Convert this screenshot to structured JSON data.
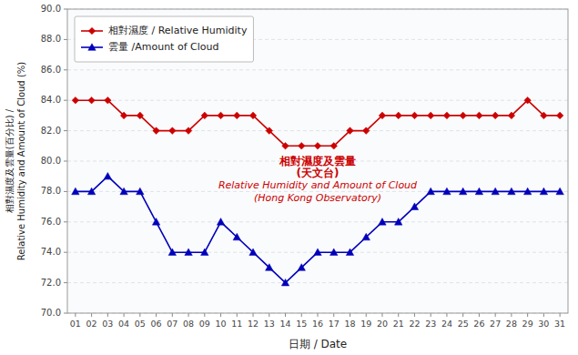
{
  "chart_data": {
    "type": "line",
    "xlabel": "日期 / Date",
    "ylabel": "相對濕度及雲量(百分比) /\nRelative Humidity and Amount of Cloud (%)",
    "x": [
      1,
      2,
      3,
      4,
      5,
      6,
      7,
      8,
      9,
      10,
      11,
      12,
      13,
      14,
      15,
      16,
      17,
      18,
      19,
      20,
      21,
      22,
      23,
      24,
      25,
      26,
      27,
      28,
      29,
      30,
      31
    ],
    "xlim": [
      0.5,
      31.5
    ],
    "xticks": [
      {
        "value": 1,
        "label": "01"
      },
      {
        "value": 2,
        "label": "02"
      },
      {
        "value": 3,
        "label": "03"
      },
      {
        "value": 4,
        "label": "04"
      },
      {
        "value": 5,
        "label": "05"
      },
      {
        "value": 6,
        "label": "06"
      },
      {
        "value": 7,
        "label": "07"
      },
      {
        "value": 8,
        "label": "08"
      },
      {
        "value": 9,
        "label": "09"
      },
      {
        "value": 10,
        "label": "10"
      },
      {
        "value": 11,
        "label": "11"
      },
      {
        "value": 12,
        "label": "12"
      },
      {
        "value": 13,
        "label": "13"
      },
      {
        "value": 14,
        "label": "14"
      },
      {
        "value": 15,
        "label": "15"
      },
      {
        "value": 16,
        "label": "16"
      },
      {
        "value": 17,
        "label": "17"
      },
      {
        "value": 18,
        "label": "18"
      },
      {
        "value": 19,
        "label": "19"
      },
      {
        "value": 20,
        "label": "20"
      },
      {
        "value": 21,
        "label": "21"
      },
      {
        "value": 22,
        "label": "22"
      },
      {
        "value": 23,
        "label": "23"
      },
      {
        "value": 24,
        "label": "24"
      },
      {
        "value": 25,
        "label": "25"
      },
      {
        "value": 26,
        "label": "26"
      },
      {
        "value": 27,
        "label": "27"
      },
      {
        "value": 28,
        "label": "28"
      },
      {
        "value": 29,
        "label": "29"
      },
      {
        "value": 30,
        "label": "30"
      },
      {
        "value": 31,
        "label": "31"
      }
    ],
    "ylim": [
      70.0,
      90.0
    ],
    "yticks": [
      {
        "value": 70.0,
        "label": "70.0"
      },
      {
        "value": 72.0,
        "label": "72.0"
      },
      {
        "value": 74.0,
        "label": "74.0"
      },
      {
        "value": 76.0,
        "label": "76.0"
      },
      {
        "value": 78.0,
        "label": "78.0"
      },
      {
        "value": 80.0,
        "label": "80.0"
      },
      {
        "value": 82.0,
        "label": "82.0"
      },
      {
        "value": 84.0,
        "label": "84.0"
      },
      {
        "value": 86.0,
        "label": "86.0"
      },
      {
        "value": 88.0,
        "label": "88.0"
      },
      {
        "value": 90.0,
        "label": "90.0"
      }
    ],
    "grid": true,
    "legend": "upper left",
    "series": [
      {
        "name": "相對濕度 / Relative Humidity",
        "color": "#cc0000",
        "marker": "diamond",
        "values": [
          84.0,
          84.0,
          84.0,
          83.0,
          83.0,
          82.0,
          82.0,
          82.0,
          83.0,
          83.0,
          83.0,
          83.0,
          82.0,
          81.0,
          81.0,
          81.0,
          81.0,
          82.0,
          82.0,
          83.0,
          83.0,
          83.0,
          83.0,
          83.0,
          83.0,
          83.0,
          83.0,
          83.0,
          84.0,
          83.0,
          83.0
        ]
      },
      {
        "name": "雲量 /Amount of Cloud",
        "color": "#0000bb",
        "marker": "triangle",
        "values": [
          78.0,
          78.0,
          79.0,
          78.0,
          78.0,
          76.0,
          74.0,
          74.0,
          74.0,
          76.0,
          75.0,
          74.0,
          73.0,
          72.0,
          73.0,
          74.0,
          74.0,
          74.0,
          75.0,
          76.0,
          76.0,
          77.0,
          78.0,
          78.0,
          78.0,
          78.0,
          78.0,
          78.0,
          78.0,
          78.0,
          78.0
        ]
      }
    ],
    "annotations": [
      "相對濕度及雲量",
      "(天文台)",
      "Relative Humidity and Amount of Cloud",
      "(Hong Kong Observatory)"
    ]
  }
}
